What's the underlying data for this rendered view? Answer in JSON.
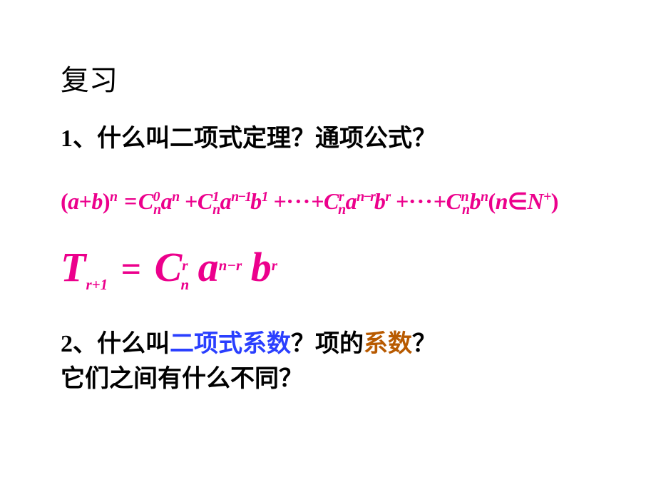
{
  "title": "复习",
  "q1": {
    "num": "1",
    "punct": "、",
    "text": "什么叫二项式定理？通项公式？"
  },
  "formula1": {
    "lhs_open": "(",
    "a": "a",
    "plus": "+",
    "b": "b",
    "lhs_close": ")",
    "n": "n",
    "eq": "=",
    "C": "C",
    "zero": "0",
    "one": "1",
    "nm1": "n−1",
    "dots": "···",
    "r": "r",
    "nmr": "n−r",
    "nn": "n",
    "tail_open": "(",
    "in": "∈",
    "Nplus": "N",
    "plus_sup": "+",
    "tail_close": ")"
  },
  "formula2": {
    "T": "T",
    "rp1": "r+1",
    "eq": "=",
    "C": "C",
    "n": "n",
    "r": "r",
    "a": "a",
    "nmr": "n−r",
    "b": "b"
  },
  "q2": {
    "num": "2",
    "punct": "、",
    "t1": "什么叫",
    "blue": "二项式系数",
    "t2": "？项的",
    "brown": "系数",
    "t3": "？",
    "line2": "它们之间有什么不同？"
  },
  "colors": {
    "pink": "#ec008c",
    "blue": "#2a3fff",
    "brown": "#b85a00",
    "black": "#000000",
    "bg": "#ffffff"
  }
}
